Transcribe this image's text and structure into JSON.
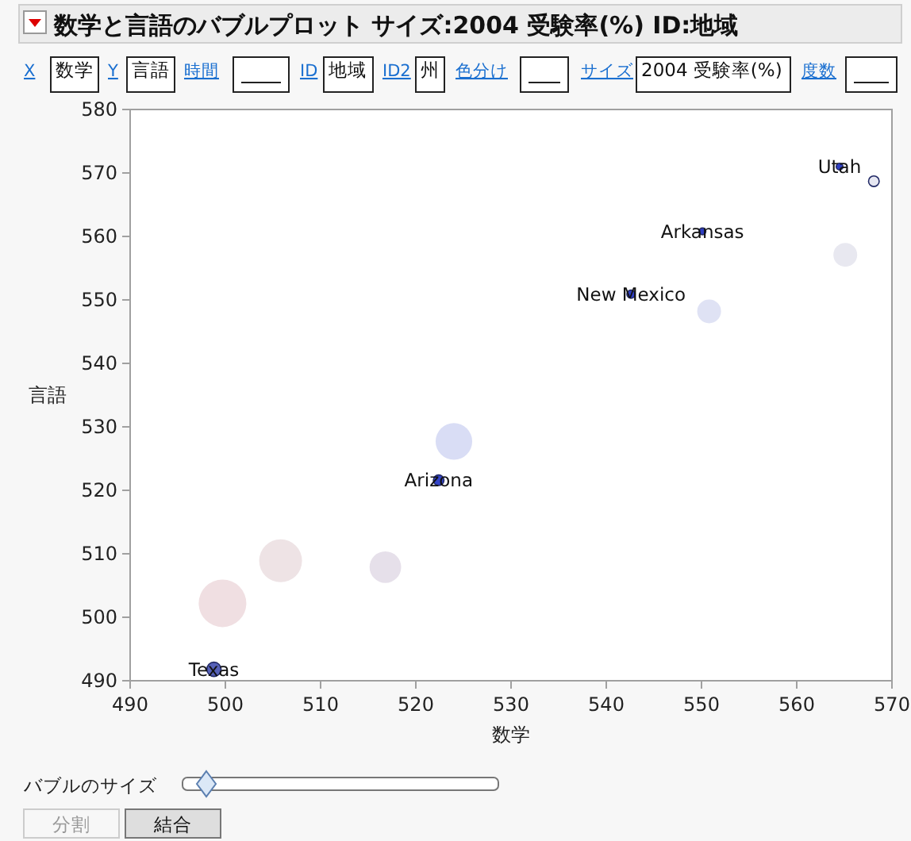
{
  "chart_data": {
    "type": "bubble",
    "title": "数学と言語のバブルプロット サイズ:2004 受験率(%)  ID:地域",
    "xlabel": "数学",
    "ylabel": "言語",
    "xlim": [
      490,
      570
    ],
    "ylim": [
      490,
      580
    ],
    "xticks": [
      490,
      500,
      510,
      520,
      530,
      540,
      550,
      560,
      570
    ],
    "yticks": [
      490,
      500,
      510,
      520,
      530,
      540,
      550,
      560,
      570,
      580
    ],
    "x": [
      564.5,
      568.1,
      550.1,
      565.1,
      542.6,
      550.8,
      524.0,
      522.4,
      516.8,
      505.8,
      499.7,
      498.8
    ],
    "values": [
      571.0,
      568.7,
      560.8,
      557.1,
      550.9,
      548.2,
      527.7,
      521.6,
      507.9,
      508.9,
      502.2,
      491.8
    ],
    "sizes": [
      0.02,
      0.05,
      0.02,
      0.25,
      0.03,
      0.25,
      0.59,
      0.05,
      0.44,
      0.81,
      1,
      0.09
    ],
    "colors": [
      "#2f3fc4",
      "#e6e7f2",
      "#2f3fc4",
      "#e8e8f0",
      "#2f3fc4",
      "#dfe2f4",
      "#d9ddf5",
      "#3344c8",
      "#e6e0ea",
      "#eee3e5",
      "#f0dfe2",
      "#5560b8"
    ],
    "annotations": [
      {
        "text": "Utah",
        "x": 564.5,
        "y": 571.0
      },
      {
        "text": "Arkansas",
        "x": 550.1,
        "y": 560.8
      },
      {
        "text": "New Mexico",
        "x": 542.6,
        "y": 550.9
      },
      {
        "text": "Arizona",
        "x": 522.4,
        "y": 521.6
      },
      {
        "text": "Texas",
        "x": 498.8,
        "y": 491.8
      },
      "X",
      "数学",
      "Y",
      "言語",
      "時間",
      "ID",
      "地域",
      "ID2",
      "州",
      "色分け",
      "サイズ",
      "2004 受験率(%)",
      "度数",
      "バブルのサイズ",
      "分割",
      "結合"
    ]
  }
}
